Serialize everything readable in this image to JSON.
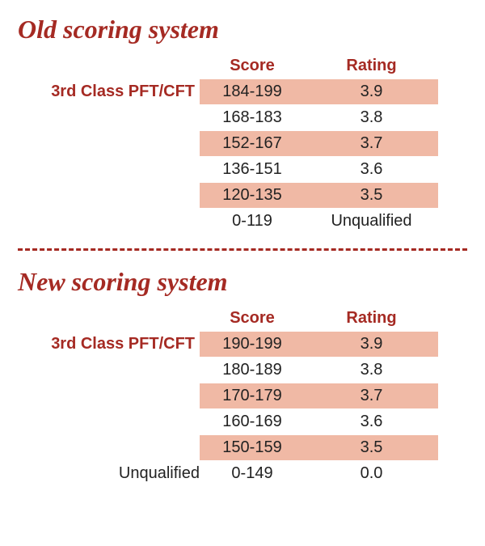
{
  "colors": {
    "title": "#a52a23",
    "header": "#a52a23",
    "text": "#222222",
    "row_highlight": "#f0b9a5",
    "divider": "#a52a23",
    "background": "#ffffff"
  },
  "sections": [
    {
      "title": "Old scoring system",
      "row_label": "3rd Class PFT/CFT",
      "headers": {
        "score": "Score",
        "rating": "Rating"
      },
      "last_label": "",
      "rows": [
        {
          "score": "184-199",
          "rating": "3.9",
          "highlight": true
        },
        {
          "score": "168-183",
          "rating": "3.8",
          "highlight": false
        },
        {
          "score": "152-167",
          "rating": "3.7",
          "highlight": true
        },
        {
          "score": "136-151",
          "rating": "3.6",
          "highlight": false
        },
        {
          "score": "120-135",
          "rating": "3.5",
          "highlight": true
        },
        {
          "score": "0-119",
          "rating": "Unqualified",
          "highlight": false
        }
      ]
    },
    {
      "title": "New scoring system",
      "row_label": "3rd Class PFT/CFT",
      "headers": {
        "score": "Score",
        "rating": "Rating"
      },
      "last_label": "Unqualified",
      "rows": [
        {
          "score": "190-199",
          "rating": "3.9",
          "highlight": true
        },
        {
          "score": "180-189",
          "rating": "3.8",
          "highlight": false
        },
        {
          "score": "170-179",
          "rating": "3.7",
          "highlight": true
        },
        {
          "score": "160-169",
          "rating": "3.6",
          "highlight": false
        },
        {
          "score": "150-159",
          "rating": "3.5",
          "highlight": true
        },
        {
          "score": "0-149",
          "rating": "0.0",
          "highlight": false
        }
      ]
    }
  ]
}
